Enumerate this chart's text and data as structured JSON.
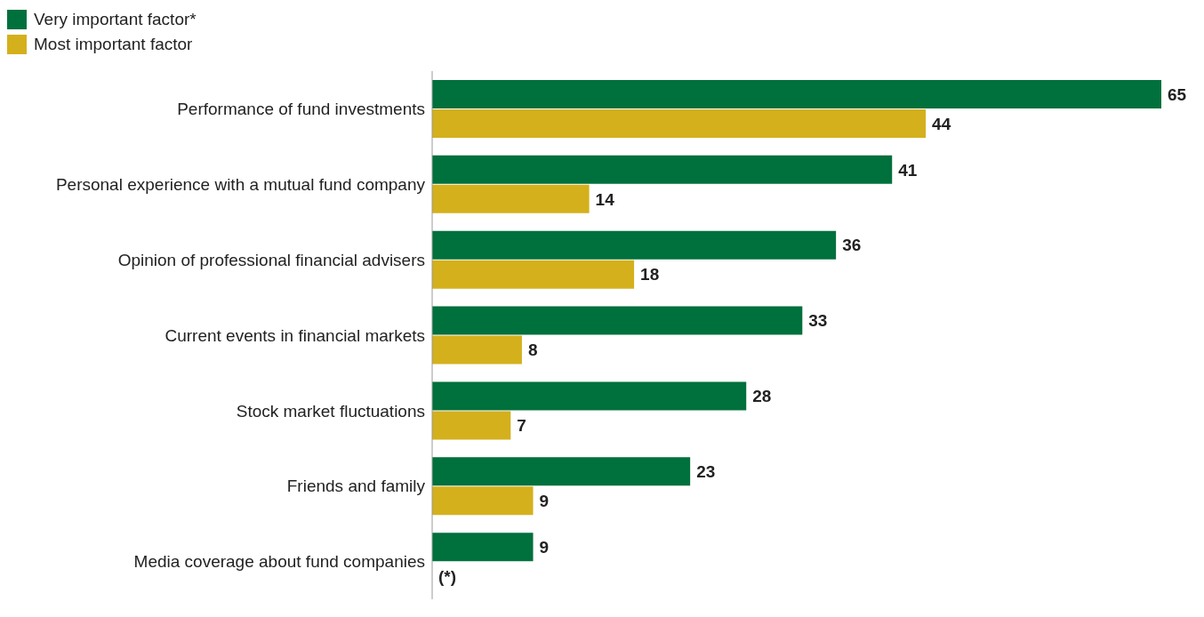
{
  "chart_data": {
    "type": "bar",
    "orientation": "horizontal",
    "categories": [
      "Performance of fund investments",
      "Personal experience with a mutual fund company",
      "Opinion of professional financial advisers",
      "Current events in financial markets",
      "Stock market fluctuations",
      "Friends and family",
      "Media coverage about fund companies"
    ],
    "series": [
      {
        "name": "Very important factor*",
        "color": "#00703c",
        "values": [
          65,
          41,
          36,
          33,
          28,
          23,
          9
        ],
        "value_labels": [
          "65",
          "41",
          "36",
          "33",
          "28",
          "23",
          "9"
        ]
      },
      {
        "name": "Most important factor",
        "color": "#d4b01c",
        "values": [
          44,
          14,
          18,
          8,
          7,
          9,
          null
        ],
        "value_labels": [
          "44",
          "14",
          "18",
          "8",
          "7",
          "9",
          "(*)"
        ]
      }
    ],
    "legend": "top left"
  }
}
